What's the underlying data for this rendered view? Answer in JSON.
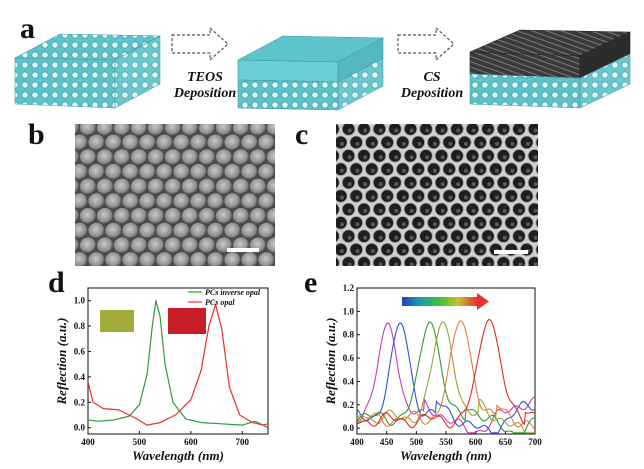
{
  "panels": {
    "a": "a",
    "b": "b",
    "c": "c",
    "d": "d",
    "e": "e"
  },
  "schematic": {
    "step1_line1": "TEOS",
    "step1_line2": "Deposition",
    "step2_line1": "CS",
    "step2_line2": "Deposition",
    "colors": {
      "structure": "#5ec4cc",
      "top_layer": "#3c3c3c",
      "arrow_fill": "#ffffff",
      "arrow_stroke": "#555555"
    }
  },
  "chart_data": [
    {
      "type": "line",
      "panel": "d",
      "xlabel": "Wavelength (nm)",
      "ylabel": "Reflection (a.u.)",
      "xlim": [
        400,
        750
      ],
      "ylim": [
        -0.05,
        1.1
      ],
      "xticks": [
        400,
        500,
        600,
        700
      ],
      "yticks": [
        0.0,
        0.2,
        0.4,
        0.6,
        0.8,
        1.0
      ],
      "xtick_labels": [
        "400",
        "500",
        "600",
        "700"
      ],
      "ytick_labels": [
        "0.0",
        "0.2",
        "0.4",
        "0.6",
        "0.8",
        "1.0"
      ],
      "legend_placement": "top-right",
      "series": [
        {
          "name": "PCs inverse opal",
          "color": "#2e9b3a",
          "x": [
            400,
            420,
            450,
            480,
            500,
            515,
            525,
            532,
            540,
            550,
            565,
            590,
            620,
            660,
            700,
            725,
            740,
            750
          ],
          "y": [
            0.06,
            0.05,
            0.06,
            0.09,
            0.18,
            0.42,
            0.8,
            1.0,
            0.88,
            0.5,
            0.2,
            0.07,
            0.04,
            0.03,
            0.02,
            0.05,
            0.02,
            0.0
          ]
        },
        {
          "name": "PCs opal",
          "color": "#e8302a",
          "x": [
            400,
            410,
            430,
            460,
            490,
            515,
            540,
            570,
            600,
            620,
            635,
            648,
            660,
            675,
            695,
            720,
            740,
            750
          ],
          "y": [
            0.36,
            0.2,
            0.15,
            0.14,
            0.08,
            0.02,
            0.04,
            0.1,
            0.22,
            0.45,
            0.8,
            0.97,
            0.78,
            0.32,
            0.1,
            0.04,
            0.02,
            0.03
          ]
        }
      ],
      "insets": [
        {
          "color": "#a2ab3c"
        },
        {
          "color": "#c81e28"
        }
      ]
    },
    {
      "type": "line",
      "panel": "e",
      "xlabel": "Wavelength (nm)",
      "ylabel": "Reflection (a.u.)",
      "xlim": [
        400,
        700
      ],
      "ylim": [
        -0.05,
        1.2
      ],
      "xticks": [
        400,
        450,
        500,
        550,
        600,
        650,
        700
      ],
      "yticks": [
        0.0,
        0.2,
        0.4,
        0.6,
        0.8,
        1.0,
        1.2
      ],
      "xtick_labels": [
        "400",
        "450",
        "500",
        "550",
        "600",
        "650",
        "700"
      ],
      "ytick_labels": [
        "0.0",
        "0.2",
        "0.4",
        "0.6",
        "0.8",
        "1.0",
        "1.2"
      ],
      "gradient_arrow_colors": [
        "#2040c8",
        "#20a0a0",
        "#40c040",
        "#c8c030",
        "#e83030"
      ],
      "series": [
        {
          "color": "#c03fb0",
          "peak": 452,
          "width": 22,
          "baseline": 0.1
        },
        {
          "color": "#3050d8",
          "peak": 473,
          "width": 22,
          "baseline": 0.1
        },
        {
          "color": "#2a9a3a",
          "peak": 523,
          "width": 24,
          "baseline": 0.09
        },
        {
          "color": "#a0a030",
          "peak": 545,
          "width": 24,
          "baseline": 0.09
        },
        {
          "color": "#e08040",
          "peak": 575,
          "width": 25,
          "baseline": 0.08
        },
        {
          "color": "#e02828",
          "peak": 623,
          "width": 26,
          "baseline": 0.07
        }
      ]
    }
  ]
}
